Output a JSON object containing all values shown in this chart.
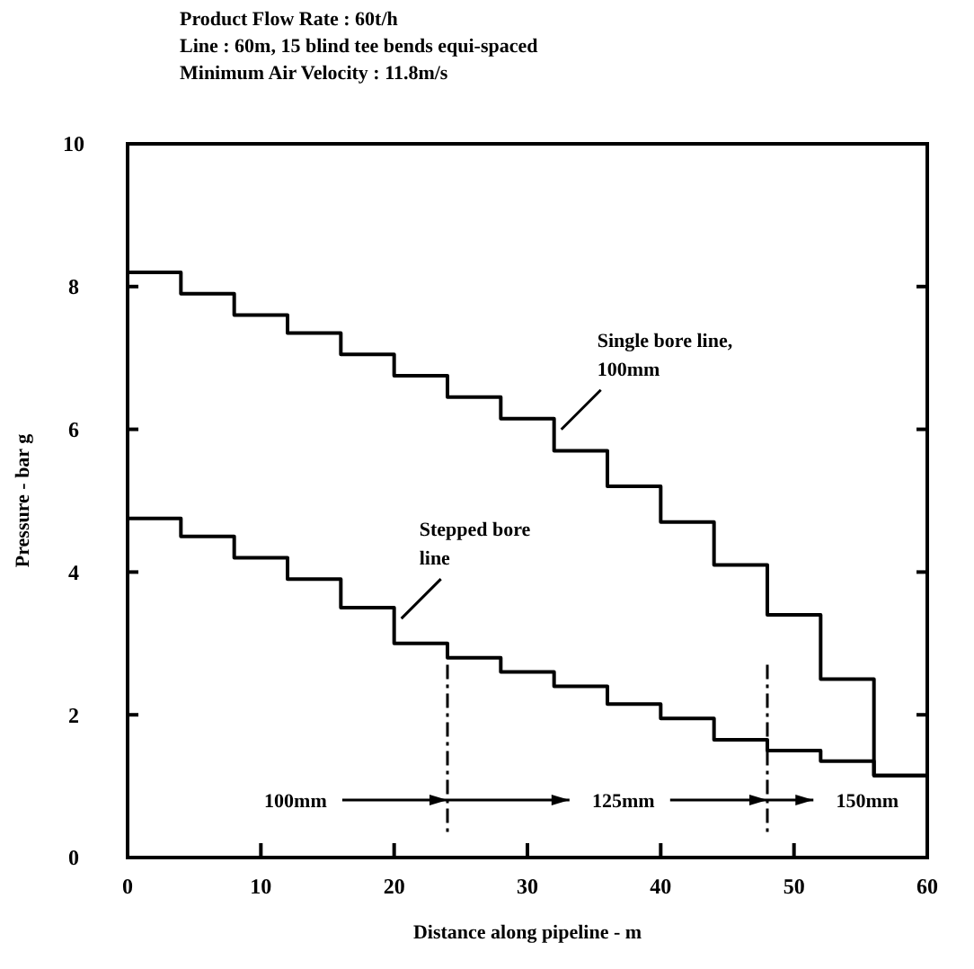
{
  "chart_data": {
    "type": "step",
    "title": "Product Flow Rate : 60t/h",
    "subtitle": "Line : 60m, 15 blind tee bends equi-spaced\nMinimum Air Velocity : 11.8m/s",
    "xlabel": "Distance along pipeline - m",
    "ylabel": "Pressure - bar g",
    "x": [
      0,
      4,
      8,
      12,
      16,
      20,
      24,
      28,
      32,
      36,
      40,
      44,
      48,
      52,
      56,
      60
    ],
    "series": [
      {
        "name": "Single bore line,\n100mm",
        "color": "#000000",
        "values": [
          8.2,
          7.9,
          7.6,
          7.35,
          7.05,
          6.75,
          6.45,
          6.15,
          5.7,
          5.2,
          4.7,
          4.1,
          3.4,
          2.5,
          1.15,
          1.15
        ]
      },
      {
        "name": "Stepped bore\nline",
        "color": "#000000",
        "values": [
          4.75,
          4.5,
          4.2,
          3.9,
          3.5,
          3.0,
          2.8,
          2.6,
          2.4,
          2.15,
          1.95,
          1.65,
          1.5,
          1.35,
          1.15,
          1.15
        ]
      }
    ],
    "xlim": [
      0,
      60
    ],
    "ylim": [
      0,
      10
    ],
    "xticks": [
      0,
      10,
      20,
      30,
      40,
      50,
      60
    ],
    "yticks": [
      0,
      2,
      4,
      6,
      8,
      10
    ],
    "ref_lines": [
      {
        "axis": "x",
        "value": 24,
        "line_style": "dashed"
      },
      {
        "axis": "x",
        "value": 48,
        "line_style": "dashed"
      }
    ],
    "annotations": [
      "100mm",
      "125mm",
      "150mm"
    ],
    "grid": false,
    "line_style": "solid"
  }
}
